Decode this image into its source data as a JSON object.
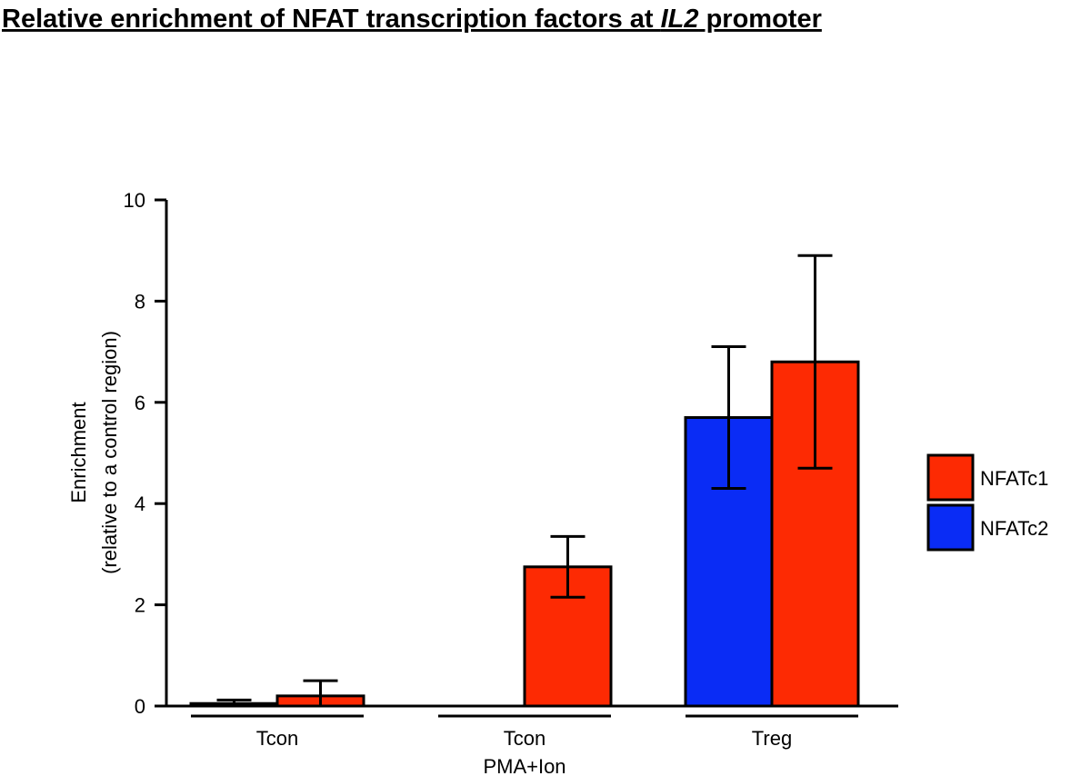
{
  "chart_data": {
    "type": "bar",
    "title": [
      "Relative enrichment of NFAT transcription factors at ",
      "IL2",
      " promoter"
    ],
    "ylabel": [
      "Enrichment",
      "(relative to a control region)"
    ],
    "categories": [
      [
        "Tcon"
      ],
      [
        "Tcon",
        "PMA+Ion"
      ],
      [
        "Treg"
      ]
    ],
    "series": [
      {
        "name": "NFATc2",
        "color": "#0a2cf5",
        "values": [
          0.05,
          null,
          5.7
        ],
        "errors": [
          0.07,
          null,
          1.4
        ]
      },
      {
        "name": "NFATc1",
        "color": "#fd2a03",
        "values": [
          0.2,
          2.75,
          6.8
        ],
        "errors": [
          0.3,
          0.6,
          2.1
        ]
      }
    ],
    "ylim": [
      0,
      10
    ],
    "yticks": [
      0,
      2,
      4,
      6,
      8,
      10
    ],
    "legend": "right"
  }
}
